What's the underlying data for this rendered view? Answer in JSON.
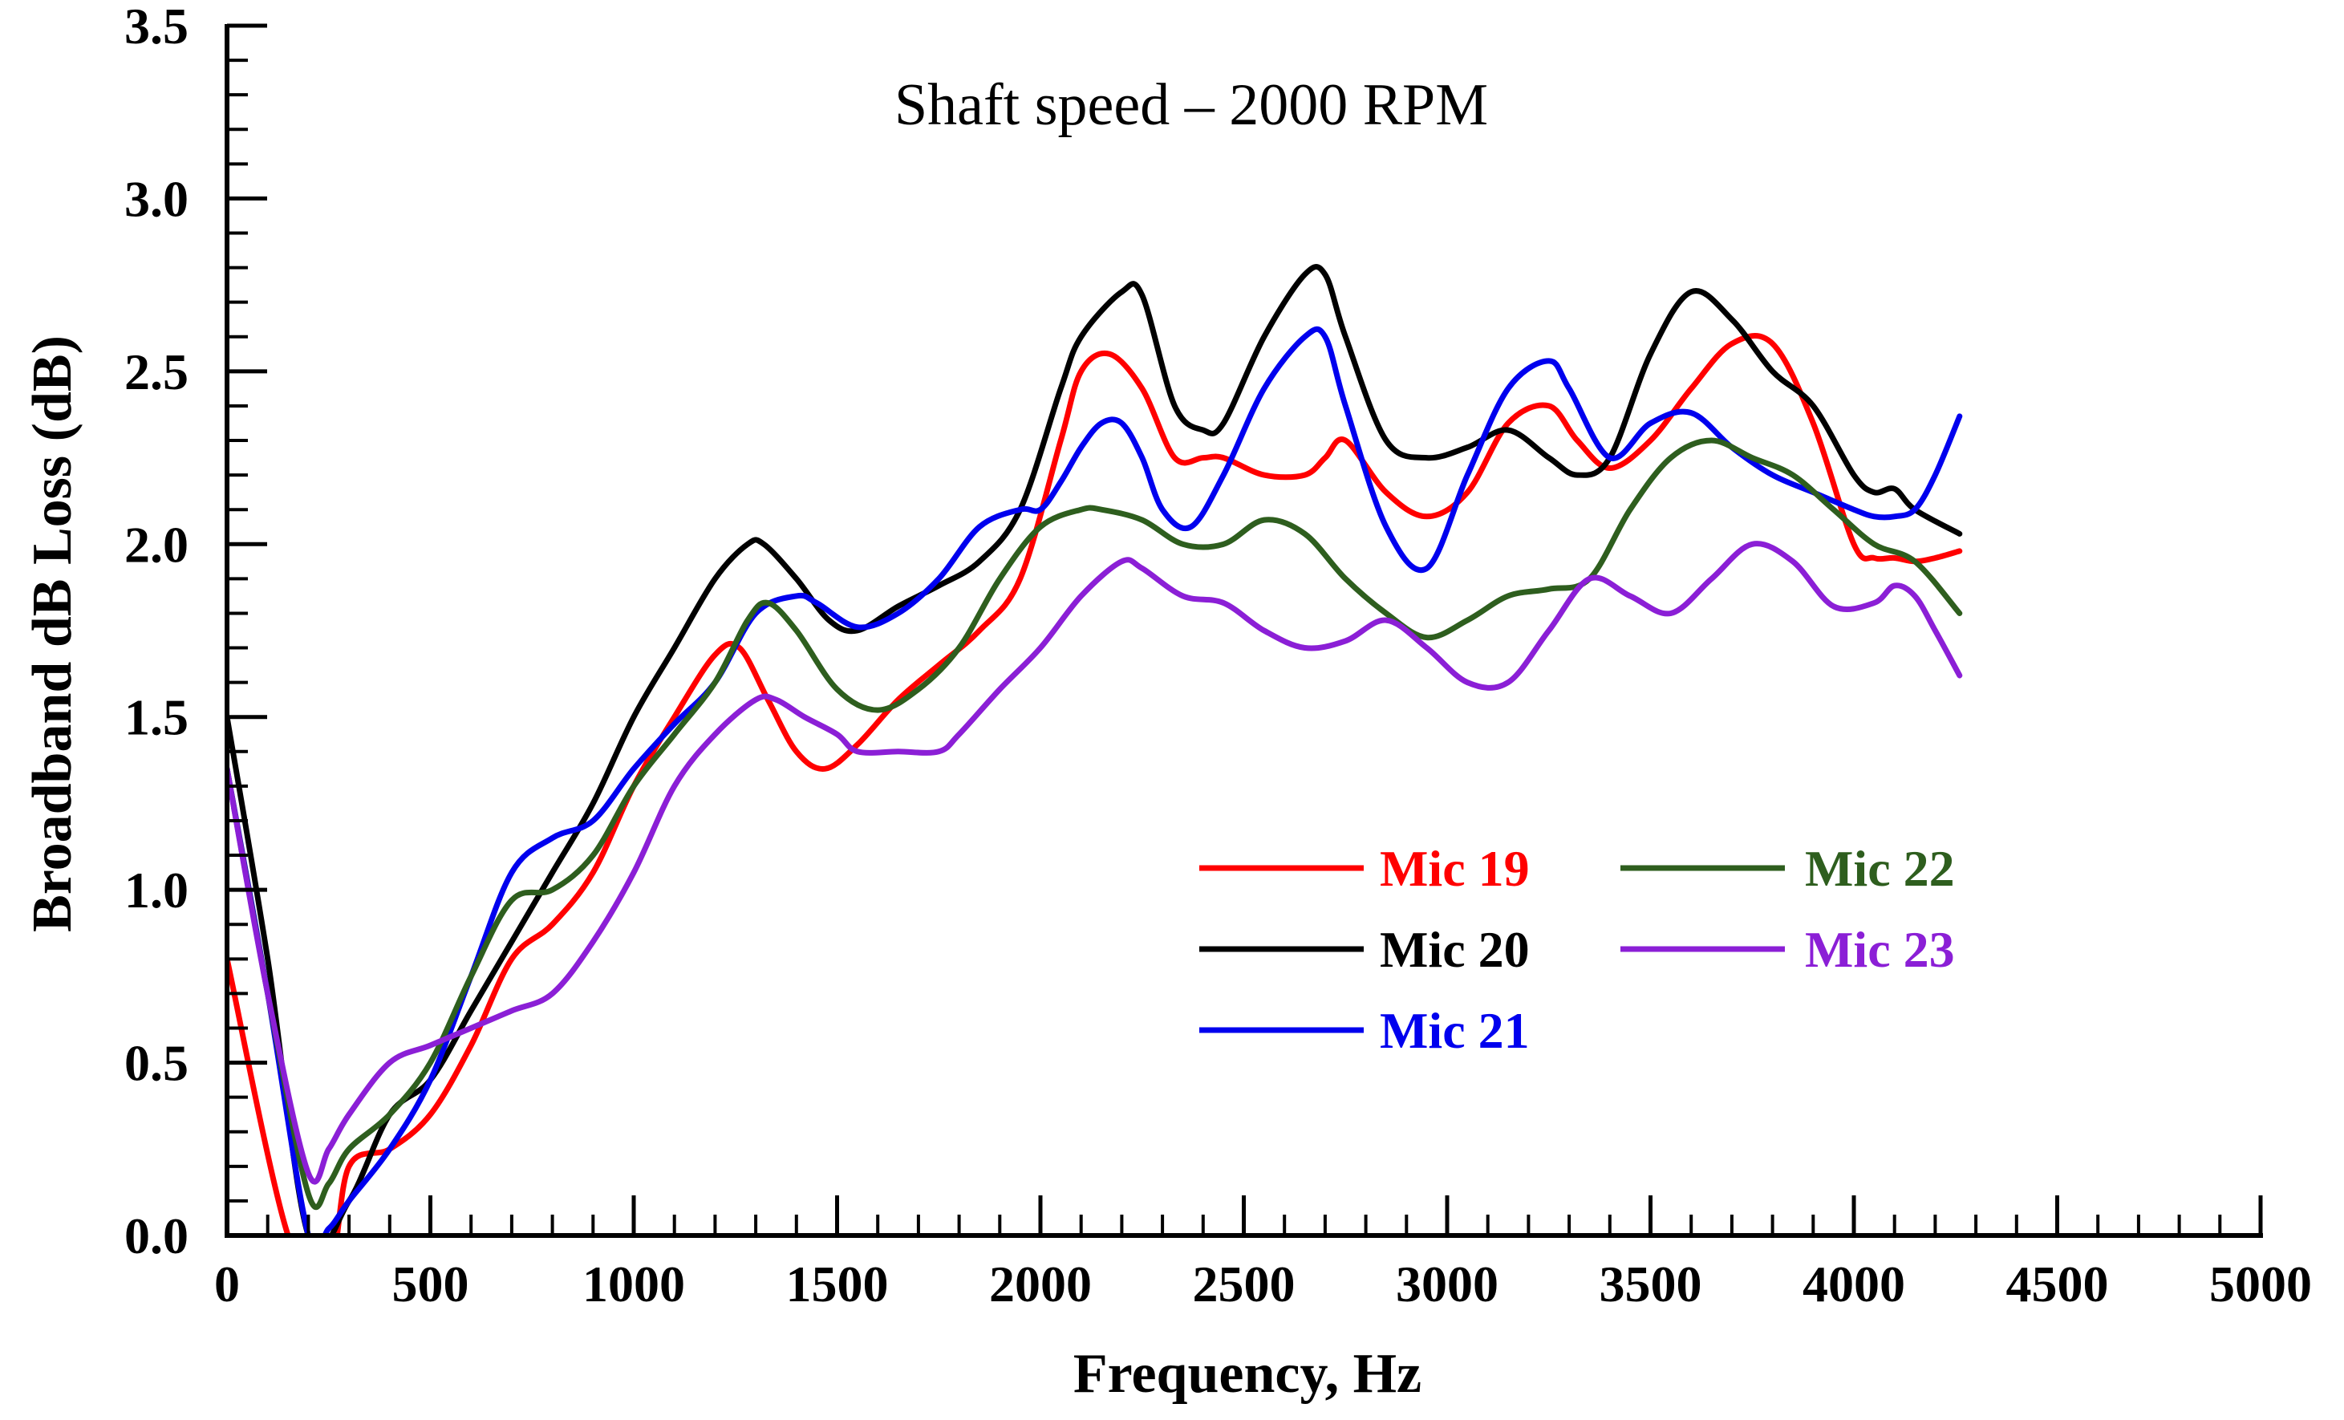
{
  "chart_data": {
    "type": "line",
    "title": "Shaft speed – 2000 RPM",
    "xlabel": "Frequency, Hz",
    "ylabel": "Broadband dB Loss (dB)",
    "xlim": [
      0,
      5000
    ],
    "ylim": [
      0,
      3.5
    ],
    "xticks": [
      "0",
      "500",
      "1000",
      "1500",
      "2000",
      "2500",
      "3000",
      "3500",
      "4000",
      "4500",
      "5000"
    ],
    "yticks": [
      "0.0",
      "0.5",
      "1.0",
      "1.5",
      "2.0",
      "2.5",
      "3.0",
      "3.5"
    ],
    "grid": false,
    "legend_position": "center-right",
    "series": [
      {
        "name": "Mic 19",
        "color": "#ff0000",
        "x": [
          0,
          150,
          250,
          300,
          400,
          500,
          600,
          700,
          800,
          900,
          1000,
          1100,
          1200,
          1260,
          1330,
          1400,
          1470,
          1550,
          1650,
          1750,
          1850,
          1950,
          2050,
          2100,
          2170,
          2250,
          2330,
          2400,
          2450,
          2550,
          2650,
          2700,
          2750,
          2850,
          2950,
          3050,
          3150,
          3250,
          3320,
          3400,
          3500,
          3600,
          3700,
          3800,
          3900,
          4000,
          4050,
          4100,
          4150,
          4200,
          4260
        ],
        "y": [
          0.8,
          0.0,
          -0.1,
          0.2,
          0.25,
          0.35,
          0.55,
          0.8,
          0.9,
          1.05,
          1.3,
          1.5,
          1.68,
          1.7,
          1.55,
          1.4,
          1.35,
          1.42,
          1.55,
          1.65,
          1.75,
          1.9,
          2.3,
          2.5,
          2.55,
          2.45,
          2.25,
          2.25,
          2.25,
          2.2,
          2.2,
          2.25,
          2.3,
          2.15,
          2.08,
          2.15,
          2.35,
          2.4,
          2.3,
          2.22,
          2.3,
          2.45,
          2.58,
          2.58,
          2.35,
          2.0,
          1.96,
          1.96,
          1.95,
          1.96,
          1.98
        ]
      },
      {
        "name": "Mic 20",
        "color": "#000000",
        "x": [
          0,
          100,
          200,
          300,
          400,
          500,
          600,
          700,
          800,
          900,
          1000,
          1100,
          1200,
          1280,
          1320,
          1400,
          1480,
          1550,
          1650,
          1750,
          1850,
          1950,
          2050,
          2100,
          2200,
          2250,
          2330,
          2400,
          2450,
          2550,
          2650,
          2700,
          2750,
          2850,
          2950,
          3050,
          3150,
          3250,
          3320,
          3400,
          3500,
          3600,
          3700,
          3800,
          3900,
          4000,
          4050,
          4100,
          4150,
          4260
        ],
        "y": [
          1.5,
          0.8,
          0.0,
          0.1,
          0.35,
          0.45,
          0.65,
          0.85,
          1.05,
          1.25,
          1.5,
          1.7,
          1.9,
          2.0,
          2.0,
          1.9,
          1.78,
          1.75,
          1.82,
          1.88,
          1.95,
          2.1,
          2.45,
          2.6,
          2.73,
          2.72,
          2.4,
          2.33,
          2.35,
          2.6,
          2.78,
          2.78,
          2.6,
          2.3,
          2.25,
          2.28,
          2.33,
          2.25,
          2.2,
          2.25,
          2.55,
          2.73,
          2.65,
          2.5,
          2.4,
          2.2,
          2.15,
          2.16,
          2.1,
          2.03
        ]
      },
      {
        "name": "Mic 21",
        "color": "#0000ee",
        "x": [
          0,
          100,
          200,
          250,
          300,
          400,
          500,
          600,
          700,
          800,
          900,
          1000,
          1100,
          1200,
          1300,
          1400,
          1450,
          1550,
          1650,
          1750,
          1850,
          1950,
          2000,
          2050,
          2100,
          2150,
          2200,
          2250,
          2300,
          2370,
          2450,
          2550,
          2650,
          2700,
          2750,
          2850,
          2950,
          3050,
          3150,
          3250,
          3300,
          3400,
          3500,
          3600,
          3700,
          3800,
          3900,
          4000,
          4050,
          4100,
          4150,
          4200,
          4260
        ],
        "y": [
          1.35,
          0.7,
          0.0,
          0.02,
          0.1,
          0.25,
          0.45,
          0.75,
          1.05,
          1.15,
          1.2,
          1.35,
          1.48,
          1.6,
          1.8,
          1.85,
          1.83,
          1.76,
          1.8,
          1.9,
          2.05,
          2.1,
          2.1,
          2.18,
          2.28,
          2.35,
          2.35,
          2.25,
          2.1,
          2.05,
          2.2,
          2.45,
          2.6,
          2.6,
          2.4,
          2.05,
          1.93,
          2.2,
          2.45,
          2.53,
          2.45,
          2.25,
          2.35,
          2.38,
          2.28,
          2.2,
          2.15,
          2.1,
          2.08,
          2.08,
          2.1,
          2.2,
          2.37
        ]
      },
      {
        "name": "Mic 22",
        "color": "#2e5e1e",
        "x": [
          0,
          100,
          200,
          250,
          300,
          400,
          500,
          600,
          700,
          800,
          900,
          1000,
          1100,
          1200,
          1280,
          1330,
          1400,
          1500,
          1600,
          1700,
          1800,
          1900,
          2000,
          2100,
          2150,
          2250,
          2350,
          2450,
          2550,
          2650,
          2750,
          2850,
          2950,
          3050,
          3150,
          3250,
          3350,
          3450,
          3550,
          3650,
          3750,
          3850,
          3950,
          4050,
          4150,
          4260
        ],
        "y": [
          1.35,
          0.7,
          0.12,
          0.15,
          0.25,
          0.35,
          0.5,
          0.75,
          0.97,
          1.0,
          1.1,
          1.3,
          1.45,
          1.6,
          1.78,
          1.83,
          1.75,
          1.58,
          1.52,
          1.58,
          1.7,
          1.9,
          2.05,
          2.1,
          2.1,
          2.07,
          2.0,
          2.0,
          2.07,
          2.03,
          1.9,
          1.8,
          1.73,
          1.78,
          1.85,
          1.87,
          1.9,
          2.1,
          2.25,
          2.3,
          2.25,
          2.2,
          2.1,
          2.0,
          1.95,
          1.8
        ]
      },
      {
        "name": "Mic 23",
        "color": "#8b1fd6",
        "x": [
          0,
          100,
          200,
          250,
          300,
          400,
          500,
          600,
          700,
          800,
          900,
          1000,
          1100,
          1200,
          1300,
          1350,
          1420,
          1500,
          1550,
          1650,
          1750,
          1800,
          1900,
          2000,
          2100,
          2200,
          2250,
          2350,
          2450,
          2550,
          2650,
          2750,
          2850,
          2950,
          3050,
          3150,
          3250,
          3350,
          3450,
          3550,
          3650,
          3750,
          3850,
          3950,
          4050,
          4100,
          4150,
          4200,
          4260
        ],
        "y": [
          1.35,
          0.7,
          0.18,
          0.25,
          0.35,
          0.5,
          0.55,
          0.6,
          0.65,
          0.7,
          0.85,
          1.05,
          1.3,
          1.45,
          1.55,
          1.55,
          1.5,
          1.45,
          1.4,
          1.4,
          1.4,
          1.45,
          1.58,
          1.7,
          1.85,
          1.95,
          1.93,
          1.85,
          1.83,
          1.75,
          1.7,
          1.72,
          1.78,
          1.7,
          1.6,
          1.6,
          1.75,
          1.9,
          1.85,
          1.8,
          1.9,
          2.0,
          1.95,
          1.82,
          1.83,
          1.88,
          1.85,
          1.75,
          1.62
        ]
      }
    ]
  }
}
